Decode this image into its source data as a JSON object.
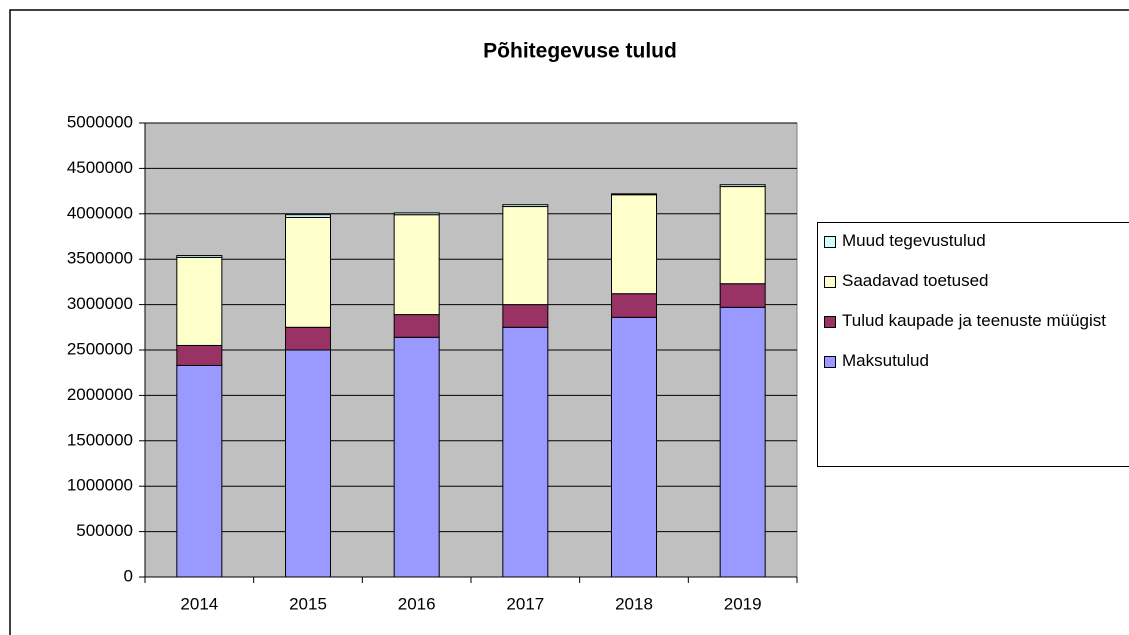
{
  "chart_data": {
    "type": "stacked_bar",
    "title": "Põhitegevuse tulud",
    "categories": [
      "2014",
      "2015",
      "2016",
      "2017",
      "2018",
      "2019"
    ],
    "series": [
      {
        "name": "Maksutulud",
        "color": "#9999ff",
        "values": [
          2330000,
          2500000,
          2640000,
          2750000,
          2860000,
          2970000
        ]
      },
      {
        "name": "Tulud kaupade ja teenuste müügist",
        "color": "#993366",
        "values": [
          220000,
          250000,
          250000,
          250000,
          260000,
          260000
        ]
      },
      {
        "name": "Saadavad toetused",
        "color": "#ffffcc",
        "values": [
          970000,
          1210000,
          1100000,
          1080000,
          1090000,
          1070000
        ]
      },
      {
        "name": "Muud tegevustulud",
        "color": "#ccffff",
        "values": [
          20000,
          30000,
          20000,
          20000,
          10000,
          20000
        ]
      }
    ],
    "ylim": [
      0,
      5000000
    ],
    "yticks": [
      0,
      500000,
      1000000,
      1500000,
      2000000,
      2500000,
      3000000,
      3500000,
      4000000,
      4500000,
      5000000
    ],
    "grid": true,
    "plot_background": "#c0c0c0",
    "legend_position": "right"
  }
}
